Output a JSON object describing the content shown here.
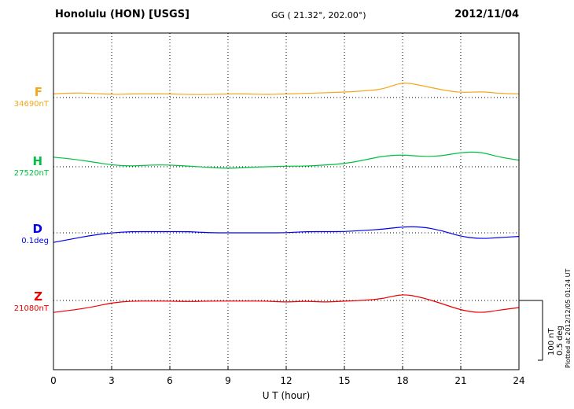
{
  "header": {
    "station": "Honolulu (HON)  [USGS]",
    "coords": "GG ( 21.32°, 202.00°)",
    "date": "2012/11/04"
  },
  "axis": {
    "xlabel": "U T (hour)"
  },
  "scale_bar": {
    "label_nt": "100 nT",
    "label_deg": "0.5 deg"
  },
  "footer": {
    "plotted_at": "Plotted at 2012/12/05 01:24 UT"
  },
  "chart_data": {
    "type": "line",
    "title": "Honolulu (HON) [USGS] magnetogram 2012/11/04",
    "xlabel": "U T (hour)",
    "x_range": [
      0,
      24
    ],
    "x_ticks": [
      0,
      3,
      6,
      9,
      12,
      15,
      18,
      21,
      24
    ],
    "grid": "vertical-dotted-every-3h, dotted-baseline-per-trace",
    "legend_position": "left-of-traces",
    "x": [
      0,
      1,
      2,
      3,
      4,
      5,
      6,
      7,
      8,
      9,
      10,
      11,
      12,
      13,
      14,
      15,
      16,
      17,
      18,
      19,
      20,
      21,
      22,
      23,
      24
    ],
    "scale": {
      "nT_per_div": 100,
      "deg_per_div": 0.5
    },
    "series": [
      {
        "name": "F",
        "baseline_label": "34690nT",
        "baseline_value": 34690,
        "units": "nT",
        "color": "#f5a81c",
        "values": [
          6,
          8,
          7,
          5,
          6,
          6,
          6,
          5,
          5,
          6,
          6,
          5,
          6,
          7,
          8,
          9,
          11,
          14,
          26,
          20,
          13,
          8,
          10,
          7,
          6
        ]
      },
      {
        "name": "H",
        "baseline_label": "27520nT",
        "baseline_value": 27520,
        "units": "nT",
        "color": "#00c040",
        "values": [
          16,
          13,
          8,
          3,
          1,
          3,
          3,
          1,
          -1,
          -3,
          -1,
          0,
          1,
          1,
          3,
          5,
          11,
          18,
          20,
          17,
          18,
          24,
          25,
          16,
          11
        ]
      },
      {
        "name": "D",
        "baseline_label": "0.1deg",
        "baseline_value": 0.1,
        "units": "deg",
        "color": "#0000ee",
        "values": [
          -0.08,
          -0.05,
          -0.02,
          0,
          0.01,
          0.01,
          0.01,
          0.01,
          0,
          0,
          0,
          0,
          0,
          0.01,
          0.01,
          0.01,
          0.02,
          0.03,
          0.05,
          0.05,
          0.02,
          -0.03,
          -0.05,
          -0.04,
          -0.03
        ]
      },
      {
        "name": "Z",
        "baseline_label": "21080nT",
        "baseline_value": 21080,
        "units": "nT",
        "color": "#ee0000",
        "values": [
          -20,
          -16,
          -11,
          -4,
          -1,
          -1,
          -1,
          -2,
          -1,
          -1,
          -1,
          -1,
          -3,
          -1,
          -3,
          -1,
          0,
          3,
          11,
          5,
          -5,
          -16,
          -21,
          -16,
          -12
        ]
      }
    ]
  }
}
